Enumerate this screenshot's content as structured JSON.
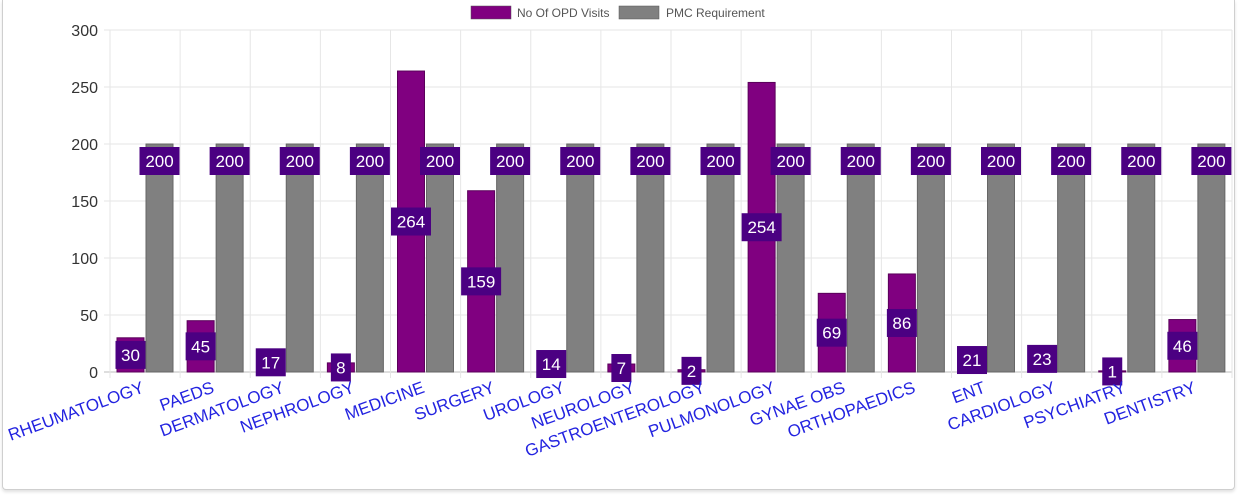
{
  "chart_data": {
    "type": "bar",
    "categories": [
      "RHEUMATOLOGY",
      "PAEDS",
      "DERMATOLOGY",
      "NEPHROLOGY",
      "MEDICINE",
      "SURGERY",
      "UROLOGY",
      "NEUROLOGY",
      "GASTROENTEROLOGY",
      "PULMONOLOGY",
      "GYNAE OBS",
      "ORTHOPAEDICS",
      "ENT",
      "CARDIOLOGY",
      "PSYCHIATRY",
      "DENTISTRY"
    ],
    "series": [
      {
        "name": "No Of OPD Visits",
        "color": "#800080",
        "values": [
          30,
          45,
          17,
          8,
          264,
          159,
          14,
          7,
          2,
          254,
          69,
          86,
          21,
          23,
          1,
          46
        ]
      },
      {
        "name": "PMC Requirement",
        "color": "#808080",
        "values": [
          200,
          200,
          200,
          200,
          200,
          200,
          200,
          200,
          200,
          200,
          200,
          200,
          200,
          200,
          200,
          200
        ]
      }
    ],
    "yticks": [
      0,
      50,
      100,
      150,
      200,
      250,
      300
    ],
    "ylim": [
      0,
      300
    ],
    "grid": true,
    "legend_position": "top-center",
    "data_label_color": "#4b0082",
    "category_label_color": "#2323e0"
  }
}
